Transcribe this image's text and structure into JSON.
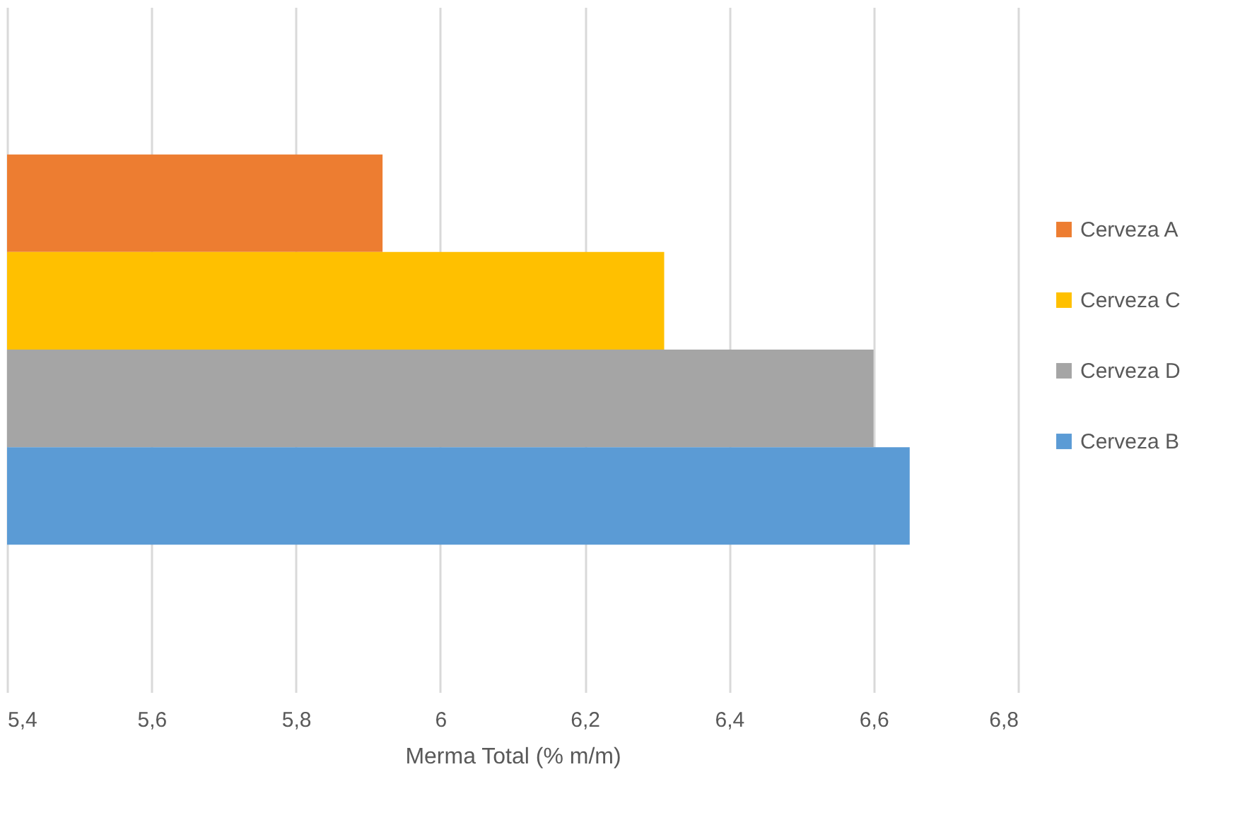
{
  "chart_data": {
    "type": "bar",
    "orientation": "horizontal",
    "xlabel": "Merma Total (% m/m)",
    "categories": [
      null
    ],
    "series": [
      {
        "name": "Cerveza A",
        "color": "#ed7d31",
        "values": [
          5.92
        ]
      },
      {
        "name": "Cerveza C",
        "color": "#ffc000",
        "values": [
          6.31
        ]
      },
      {
        "name": "Cerveza D",
        "color": "#a5a5a5",
        "values": [
          6.6
        ]
      },
      {
        "name": "Cerveza B",
        "color": "#5b9bd5",
        "values": [
          6.65
        ]
      }
    ],
    "xlim": [
      5.4,
      6.8
    ],
    "xticks": [
      {
        "value": 5.4,
        "label": "5,4"
      },
      {
        "value": 5.6,
        "label": "5,6"
      },
      {
        "value": 5.8,
        "label": "5,8"
      },
      6,
      {
        "value": 6.2,
        "label": "6,2"
      },
      {
        "value": 6.4,
        "label": "6,4"
      },
      {
        "value": 6.6,
        "label": "6,6"
      },
      {
        "value": 6.8,
        "label": "6,8"
      }
    ],
    "grid": "x",
    "legend": "right",
    "tick_labels": "x"
  }
}
